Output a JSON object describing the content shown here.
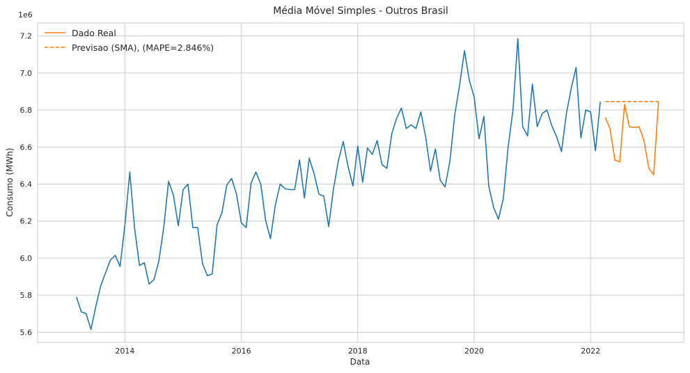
{
  "chart_data": {
    "type": "line",
    "title": "Média Móvel Simples - Outros Brasil",
    "xlabel": "Data",
    "ylabel": "Consumo (MWh)",
    "y_offset_label": "1e6",
    "xlim": [
      2012.5,
      2023.6
    ],
    "ylim": [
      5.545,
      7.27
    ],
    "x_ticks": [
      2014,
      2016,
      2018,
      2020,
      2022
    ],
    "x_tick_labels": [
      "2014",
      "2016",
      "2018",
      "2020",
      "2022"
    ],
    "y_ticks": [
      5.6,
      5.8,
      6.0,
      6.2,
      6.4,
      6.6,
      6.8,
      7.0,
      7.2
    ],
    "y_tick_labels": [
      "5.6",
      "5.8",
      "6.0",
      "6.2",
      "6.4",
      "6.6",
      "6.8",
      "7.0",
      "7.2"
    ],
    "grid": true,
    "legend_position": "top-left",
    "series": [
      {
        "key": "history",
        "color": "#1f77b4",
        "dash": "solid",
        "x_start": 2013.1667,
        "step_months": 1,
        "values": [
          5.79,
          5.71,
          5.7,
          5.615,
          5.74,
          5.85,
          5.92,
          5.99,
          6.015,
          5.955,
          6.18,
          6.465,
          6.16,
          5.96,
          5.975,
          5.86,
          5.885,
          5.985,
          6.165,
          6.415,
          6.34,
          6.175,
          6.37,
          6.4,
          6.165,
          6.165,
          5.97,
          5.905,
          5.915,
          6.18,
          6.245,
          6.395,
          6.43,
          6.345,
          6.19,
          6.165,
          6.405,
          6.465,
          6.4,
          6.205,
          6.105,
          6.285,
          6.4,
          6.375,
          6.37,
          6.37,
          6.53,
          6.325,
          6.54,
          6.455,
          6.345,
          6.335,
          6.17,
          6.375,
          6.525,
          6.63,
          6.495,
          6.39,
          6.605,
          6.41,
          6.595,
          6.56,
          6.635,
          6.505,
          6.485,
          6.67,
          6.755,
          6.81,
          6.7,
          6.72,
          6.7,
          6.79,
          6.655,
          6.47,
          6.59,
          6.42,
          6.385,
          6.525,
          6.775,
          6.935,
          7.12,
          6.96,
          6.87,
          6.645,
          6.765,
          6.39,
          6.275,
          6.21,
          6.32,
          6.6,
          6.8,
          7.185,
          6.71,
          6.66,
          6.94,
          6.71,
          6.78,
          6.8,
          6.715,
          6.655,
          6.575,
          6.78,
          6.915,
          7.03,
          6.65,
          6.8,
          6.79,
          6.58,
          6.845
        ]
      },
      {
        "key": "real",
        "name": "Dado Real",
        "color": "#ff7f0e",
        "dash": "solid",
        "x_start": 2022.25,
        "step_months": 1,
        "values": [
          6.76,
          6.7,
          6.53,
          6.52,
          6.83,
          6.71,
          6.705,
          6.71,
          6.635,
          6.485,
          6.45,
          6.845
        ]
      },
      {
        "key": "forecast",
        "name": "Previsao (SMA), (MAPE=2.846%)",
        "color": "#ff7f0e",
        "dash": "dashed",
        "x_start": 2022.25,
        "step_months": 1,
        "values": [
          6.845,
          6.845,
          6.845,
          6.845,
          6.845,
          6.845,
          6.845,
          6.845,
          6.845,
          6.845,
          6.845,
          6.845
        ]
      }
    ]
  }
}
